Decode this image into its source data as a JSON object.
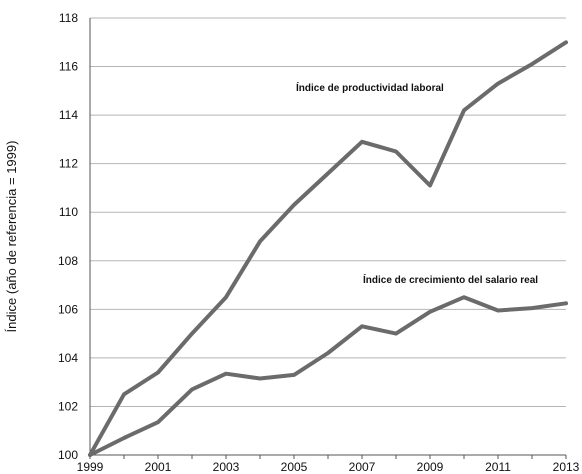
{
  "chart_data": {
    "type": "line",
    "title": "",
    "xlabel": "",
    "ylabel": "Índice (año de referencia = 1999)",
    "ylim": [
      100,
      118
    ],
    "yticks": [
      100,
      102,
      104,
      106,
      108,
      110,
      112,
      114,
      116,
      118
    ],
    "xlim": [
      1999,
      2013
    ],
    "xticks": [
      1999,
      2001,
      2003,
      2005,
      2007,
      2009,
      2011,
      2013
    ],
    "grid": "horizontal",
    "legend": "none",
    "x": [
      1999,
      2000,
      2001,
      2002,
      2003,
      2004,
      2005,
      2006,
      2007,
      2008,
      2009,
      2010,
      2011,
      2012,
      2013
    ],
    "series": [
      {
        "name": "Índice de productividad laboral",
        "color": "#6b6b6b",
        "values": [
          100.0,
          102.5,
          103.4,
          105.0,
          106.5,
          108.8,
          110.3,
          111.6,
          112.9,
          112.5,
          111.1,
          114.2,
          115.3,
          116.1,
          117.0
        ]
      },
      {
        "name": "Índice de crecimiento del salario real",
        "color": "#6b6b6b",
        "values": [
          100.0,
          100.7,
          101.35,
          102.7,
          103.35,
          103.15,
          103.3,
          104.2,
          105.3,
          105.0,
          105.9,
          106.5,
          105.95,
          106.05,
          106.25
        ]
      }
    ]
  }
}
